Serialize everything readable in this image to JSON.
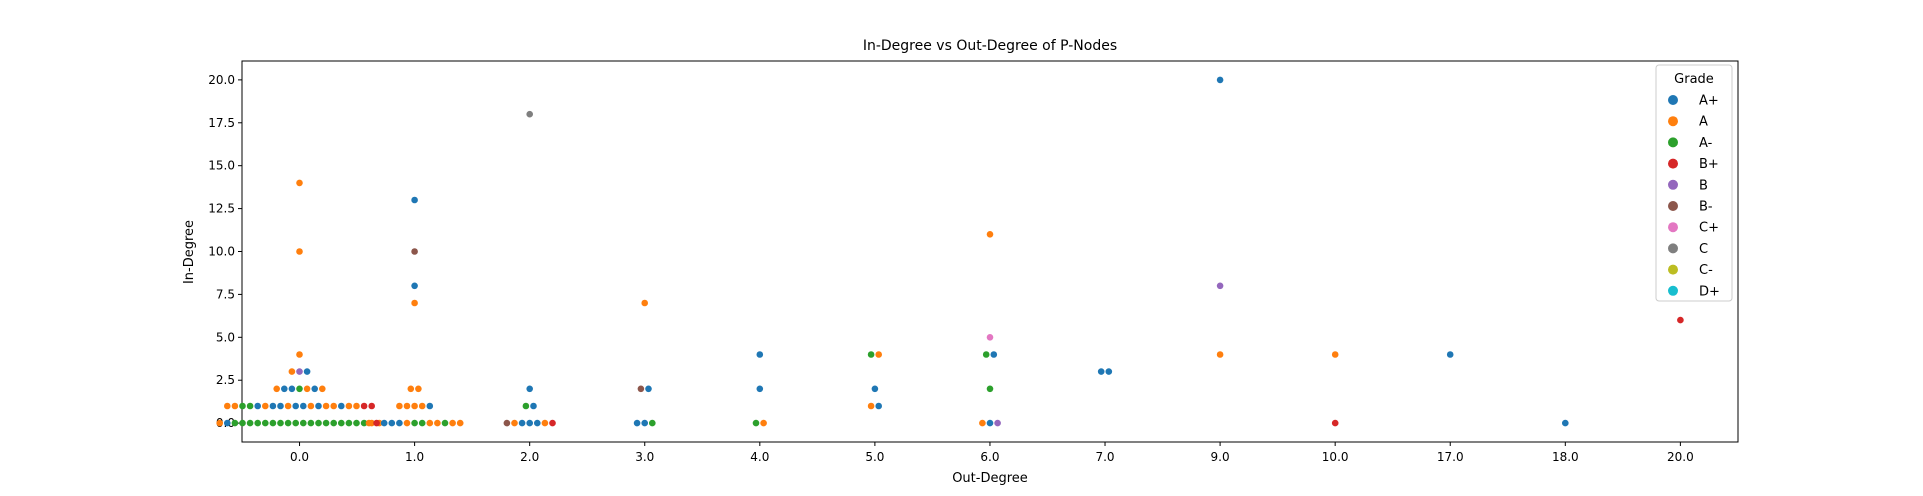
{
  "colors": {
    "A+": "#1f77b4",
    "A": "#ff7f0e",
    "A-": "#2ca02c",
    "B+": "#d62728",
    "B": "#9467bd",
    "B-": "#8c564b",
    "C+": "#e377c2",
    "C": "#7f7f7f",
    "C-": "#bcbd22",
    "D+": "#17becf"
  },
  "chart_data": {
    "type": "scatter",
    "title": "In-Degree vs Out-Degree of P-Nodes",
    "xlabel": "Out-Degree",
    "ylabel": "In-Degree",
    "categories": [
      "0.0",
      "1.0",
      "2.0",
      "3.0",
      "4.0",
      "5.0",
      "6.0",
      "7.0",
      "9.0",
      "10.0",
      "17.0",
      "18.0",
      "20.0"
    ],
    "yticks": [
      "0.0",
      "2.5",
      "5.0",
      "7.5",
      "10.0",
      "12.5",
      "15.0",
      "17.5",
      "20.0"
    ],
    "ylim": [
      -1.1,
      21.1
    ],
    "legend": {
      "title": "Grade",
      "position": "top-right",
      "entries": [
        "A+",
        "A",
        "A-",
        "B+",
        "B",
        "B-",
        "C+",
        "C",
        "C-",
        "D+"
      ]
    },
    "points": [
      {
        "x": "0.0",
        "y": 14,
        "grade": "A"
      },
      {
        "x": "0.0",
        "y": 10,
        "grade": "A"
      },
      {
        "x": "0.0",
        "y": 4,
        "grade": "A"
      },
      {
        "x": "0.0",
        "y": 3,
        "grade": "A"
      },
      {
        "x": "0.0",
        "y": 3,
        "grade": "B"
      },
      {
        "x": "0.0",
        "y": 3,
        "grade": "A+"
      },
      {
        "x": "0.0",
        "y": 2,
        "grade": "A"
      },
      {
        "x": "0.0",
        "y": 2,
        "grade": "A+"
      },
      {
        "x": "0.0",
        "y": 2,
        "grade": "A+"
      },
      {
        "x": "0.0",
        "y": 2,
        "grade": "A-"
      },
      {
        "x": "0.0",
        "y": 2,
        "grade": "A"
      },
      {
        "x": "0.0",
        "y": 2,
        "grade": "A+"
      },
      {
        "x": "0.0",
        "y": 2,
        "grade": "A"
      },
      {
        "x": "0.0",
        "y": 1,
        "grade": "A"
      },
      {
        "x": "0.0",
        "y": 1,
        "grade": "A"
      },
      {
        "x": "0.0",
        "y": 1,
        "grade": "A-"
      },
      {
        "x": "0.0",
        "y": 1,
        "grade": "A-"
      },
      {
        "x": "0.0",
        "y": 1,
        "grade": "A+"
      },
      {
        "x": "0.0",
        "y": 1,
        "grade": "A"
      },
      {
        "x": "0.0",
        "y": 1,
        "grade": "A+"
      },
      {
        "x": "0.0",
        "y": 1,
        "grade": "A+"
      },
      {
        "x": "0.0",
        "y": 1,
        "grade": "A"
      },
      {
        "x": "0.0",
        "y": 1,
        "grade": "A+"
      },
      {
        "x": "0.0",
        "y": 1,
        "grade": "A+"
      },
      {
        "x": "0.0",
        "y": 1,
        "grade": "A"
      },
      {
        "x": "0.0",
        "y": 1,
        "grade": "A+"
      },
      {
        "x": "0.0",
        "y": 1,
        "grade": "A"
      },
      {
        "x": "0.0",
        "y": 1,
        "grade": "A"
      },
      {
        "x": "0.0",
        "y": 1,
        "grade": "A+"
      },
      {
        "x": "0.0",
        "y": 1,
        "grade": "A"
      },
      {
        "x": "0.0",
        "y": 1,
        "grade": "A"
      },
      {
        "x": "0.0",
        "y": 1,
        "grade": "B+"
      },
      {
        "x": "0.0",
        "y": 1,
        "grade": "B+"
      },
      {
        "x": "0.0",
        "y": 0,
        "grade": "A"
      },
      {
        "x": "0.0",
        "y": 0,
        "grade": "A+"
      },
      {
        "x": "0.0",
        "y": 0,
        "grade": "A-"
      },
      {
        "x": "0.0",
        "y": 0,
        "grade": "A-"
      },
      {
        "x": "0.0",
        "y": 0,
        "grade": "A-"
      },
      {
        "x": "0.0",
        "y": 0,
        "grade": "A-"
      },
      {
        "x": "0.0",
        "y": 0,
        "grade": "A-"
      },
      {
        "x": "0.0",
        "y": 0,
        "grade": "A-"
      },
      {
        "x": "0.0",
        "y": 0,
        "grade": "A-"
      },
      {
        "x": "0.0",
        "y": 0,
        "grade": "A-"
      },
      {
        "x": "0.0",
        "y": 0,
        "grade": "A-"
      },
      {
        "x": "0.0",
        "y": 0,
        "grade": "A-"
      },
      {
        "x": "0.0",
        "y": 0,
        "grade": "A-"
      },
      {
        "x": "0.0",
        "y": 0,
        "grade": "A-"
      },
      {
        "x": "0.0",
        "y": 0,
        "grade": "A-"
      },
      {
        "x": "0.0",
        "y": 0,
        "grade": "A-"
      },
      {
        "x": "0.0",
        "y": 0,
        "grade": "A-"
      },
      {
        "x": "0.0",
        "y": 0,
        "grade": "A-"
      },
      {
        "x": "0.0",
        "y": 0,
        "grade": "A-"
      },
      {
        "x": "0.0",
        "y": 0,
        "grade": "A-"
      },
      {
        "x": "0.0",
        "y": 0,
        "grade": "A"
      },
      {
        "x": "0.0",
        "y": 0,
        "grade": "A"
      },
      {
        "x": "1.0",
        "y": 13,
        "grade": "A+"
      },
      {
        "x": "1.0",
        "y": 10,
        "grade": "B-"
      },
      {
        "x": "1.0",
        "y": 8,
        "grade": "A+"
      },
      {
        "x": "1.0",
        "y": 7,
        "grade": "A"
      },
      {
        "x": "1.0",
        "y": 2,
        "grade": "A"
      },
      {
        "x": "1.0",
        "y": 2,
        "grade": "A"
      },
      {
        "x": "1.0",
        "y": 1,
        "grade": "A"
      },
      {
        "x": "1.0",
        "y": 1,
        "grade": "A"
      },
      {
        "x": "1.0",
        "y": 1,
        "grade": "A"
      },
      {
        "x": "1.0",
        "y": 1,
        "grade": "A"
      },
      {
        "x": "1.0",
        "y": 1,
        "grade": "A+"
      },
      {
        "x": "1.0",
        "y": 0,
        "grade": "A"
      },
      {
        "x": "1.0",
        "y": 0,
        "grade": "B+"
      },
      {
        "x": "1.0",
        "y": 0,
        "grade": "A+"
      },
      {
        "x": "1.0",
        "y": 0,
        "grade": "A+"
      },
      {
        "x": "1.0",
        "y": 0,
        "grade": "A+"
      },
      {
        "x": "1.0",
        "y": 0,
        "grade": "A"
      },
      {
        "x": "1.0",
        "y": 0,
        "grade": "A-"
      },
      {
        "x": "1.0",
        "y": 0,
        "grade": "A-"
      },
      {
        "x": "1.0",
        "y": 0,
        "grade": "A"
      },
      {
        "x": "1.0",
        "y": 0,
        "grade": "A"
      },
      {
        "x": "1.0",
        "y": 0,
        "grade": "A-"
      },
      {
        "x": "1.0",
        "y": 0,
        "grade": "A"
      },
      {
        "x": "1.0",
        "y": 0,
        "grade": "A"
      },
      {
        "x": "2.0",
        "y": 18,
        "grade": "C"
      },
      {
        "x": "2.0",
        "y": 2,
        "grade": "A+"
      },
      {
        "x": "2.0",
        "y": 1,
        "grade": "A-"
      },
      {
        "x": "2.0",
        "y": 1,
        "grade": "A+"
      },
      {
        "x": "2.0",
        "y": 0,
        "grade": "B-"
      },
      {
        "x": "2.0",
        "y": 0,
        "grade": "A"
      },
      {
        "x": "2.0",
        "y": 0,
        "grade": "A+"
      },
      {
        "x": "2.0",
        "y": 0,
        "grade": "A+"
      },
      {
        "x": "2.0",
        "y": 0,
        "grade": "A+"
      },
      {
        "x": "2.0",
        "y": 0,
        "grade": "A"
      },
      {
        "x": "2.0",
        "y": 0,
        "grade": "B+"
      },
      {
        "x": "3.0",
        "y": 7,
        "grade": "A"
      },
      {
        "x": "3.0",
        "y": 2,
        "grade": "B-"
      },
      {
        "x": "3.0",
        "y": 2,
        "grade": "A+"
      },
      {
        "x": "3.0",
        "y": 0,
        "grade": "A+"
      },
      {
        "x": "3.0",
        "y": 0,
        "grade": "A+"
      },
      {
        "x": "3.0",
        "y": 0,
        "grade": "A-"
      },
      {
        "x": "4.0",
        "y": 4,
        "grade": "A+"
      },
      {
        "x": "4.0",
        "y": 2,
        "grade": "A+"
      },
      {
        "x": "4.0",
        "y": 0,
        "grade": "A-"
      },
      {
        "x": "4.0",
        "y": 0,
        "grade": "A"
      },
      {
        "x": "5.0",
        "y": 4,
        "grade": "A-"
      },
      {
        "x": "5.0",
        "y": 4,
        "grade": "A"
      },
      {
        "x": "5.0",
        "y": 2,
        "grade": "A+"
      },
      {
        "x": "5.0",
        "y": 1,
        "grade": "A"
      },
      {
        "x": "5.0",
        "y": 1,
        "grade": "A+"
      },
      {
        "x": "6.0",
        "y": 11,
        "grade": "A"
      },
      {
        "x": "6.0",
        "y": 5,
        "grade": "C+"
      },
      {
        "x": "6.0",
        "y": 4,
        "grade": "A-"
      },
      {
        "x": "6.0",
        "y": 4,
        "grade": "A+"
      },
      {
        "x": "6.0",
        "y": 2,
        "grade": "A-"
      },
      {
        "x": "6.0",
        "y": 0,
        "grade": "A"
      },
      {
        "x": "6.0",
        "y": 0,
        "grade": "A+"
      },
      {
        "x": "6.0",
        "y": 0,
        "grade": "B"
      },
      {
        "x": "7.0",
        "y": 3,
        "grade": "A+"
      },
      {
        "x": "7.0",
        "y": 3,
        "grade": "A+"
      },
      {
        "x": "9.0",
        "y": 20,
        "grade": "A+"
      },
      {
        "x": "9.0",
        "y": 8,
        "grade": "B"
      },
      {
        "x": "9.0",
        "y": 4,
        "grade": "A"
      },
      {
        "x": "10.0",
        "y": 4,
        "grade": "A"
      },
      {
        "x": "10.0",
        "y": 0,
        "grade": "B+"
      },
      {
        "x": "17.0",
        "y": 4,
        "grade": "A+"
      },
      {
        "x": "18.0",
        "y": 0,
        "grade": "A+"
      },
      {
        "x": "20.0",
        "y": 6,
        "grade": "B+"
      }
    ]
  }
}
